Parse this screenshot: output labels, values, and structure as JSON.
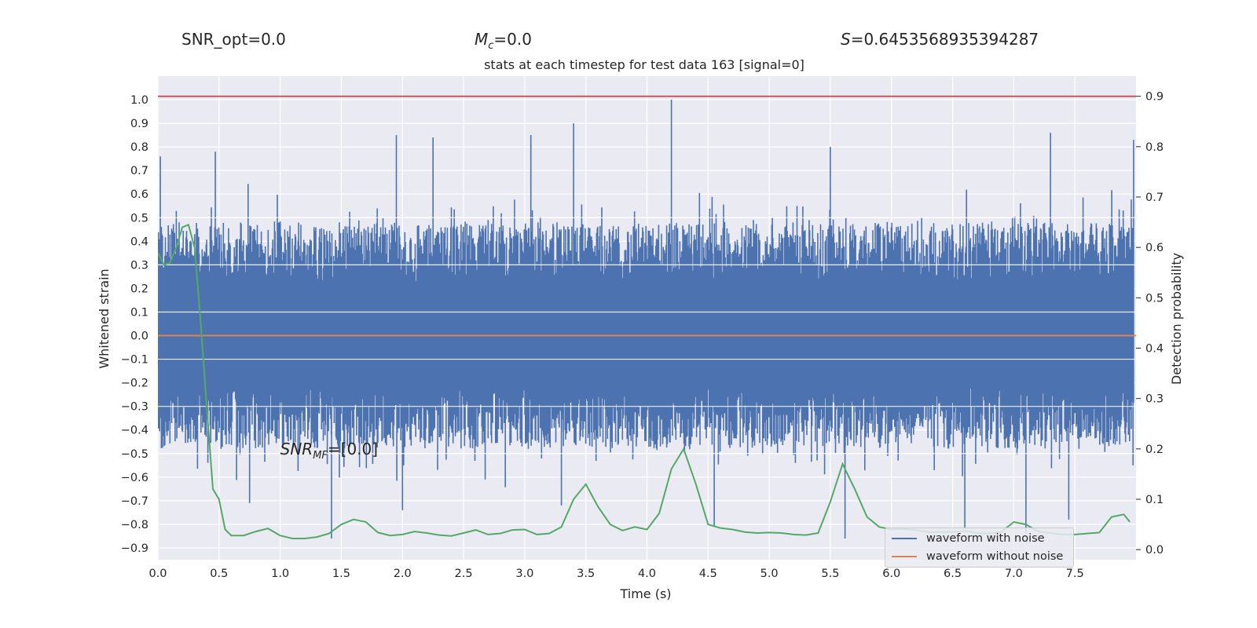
{
  "headers": {
    "snr_opt": "SNR_opt=0.0",
    "mc_symbol": "M",
    "mc_sub": "c",
    "mc_value": "=0.0",
    "s_symbol": "S",
    "s_value": "=0.6453568935394287"
  },
  "chart_data": {
    "type": "line",
    "title": "stats at each timestep for test data 163 [signal=0]",
    "xlabel": "Time (s)",
    "ylabel": "Whitened strain",
    "y2label": "Detection probability",
    "xlim": [
      0.0,
      8.0
    ],
    "ylim": [
      -0.95,
      1.1
    ],
    "y2lim": [
      -0.02,
      0.94
    ],
    "xticks": [
      "0.0",
      "0.5",
      "1.0",
      "1.5",
      "2.0",
      "2.5",
      "3.0",
      "3.5",
      "4.0",
      "4.5",
      "5.0",
      "5.5",
      "6.0",
      "6.5",
      "7.0",
      "7.5"
    ],
    "yticks": [
      "1.0",
      "0.9",
      "0.8",
      "0.7",
      "0.6",
      "0.5",
      "0.4",
      "0.3",
      "0.2",
      "0.1",
      "0.0",
      "-0.1",
      "-0.2",
      "-0.3",
      "-0.4",
      "-0.5",
      "-0.6",
      "-0.7",
      "-0.8",
      "-0.9"
    ],
    "y2ticks": [
      "0.9",
      "0.8",
      "0.7",
      "0.6",
      "0.5",
      "0.4",
      "0.3",
      "0.2",
      "0.1",
      "0.0"
    ],
    "threshold": {
      "value": 0.9,
      "color": "#c44e52"
    },
    "annotation": {
      "base": "SNR",
      "sub": "MF",
      "suffix": "=[0.0]",
      "x": 1.0,
      "y": -0.48
    },
    "series": [
      {
        "name": "waveform with noise",
        "color": "#4c72b0",
        "envelope": "dense noise approx. within [-0.5, 0.5], peak 1.0 at t=4.2",
        "peaks_upper": [
          [
            0.02,
            0.76
          ],
          [
            0.47,
            0.78
          ],
          [
            1.95,
            0.85
          ],
          [
            2.25,
            0.84
          ],
          [
            3.05,
            0.85
          ],
          [
            3.4,
            0.9
          ],
          [
            4.2,
            1.0
          ],
          [
            5.5,
            0.8
          ],
          [
            7.3,
            0.86
          ],
          [
            7.98,
            0.83
          ]
        ],
        "peaks_lower": [
          [
            0.75,
            -0.71
          ],
          [
            1.42,
            -0.86
          ],
          [
            2.0,
            -0.74
          ],
          [
            3.3,
            -0.72
          ],
          [
            4.55,
            -0.81
          ],
          [
            5.62,
            -0.86
          ],
          [
            6.6,
            -0.82
          ],
          [
            7.1,
            -0.84
          ],
          [
            7.45,
            -0.78
          ]
        ]
      },
      {
        "name": "waveform without noise",
        "color": "#dd8452",
        "values": [
          [
            0.0,
            0.0
          ],
          [
            8.0,
            0.0
          ]
        ]
      },
      {
        "name": "",
        "color": "#55a868",
        "axis": "y2",
        "x": [
          0.0,
          0.05,
          0.1,
          0.15,
          0.2,
          0.25,
          0.3,
          0.35,
          0.4,
          0.45,
          0.5,
          0.55,
          0.6,
          0.7,
          0.8,
          0.9,
          1.0,
          1.1,
          1.2,
          1.3,
          1.4,
          1.5,
          1.6,
          1.7,
          1.8,
          1.9,
          2.0,
          2.1,
          2.2,
          2.3,
          2.4,
          2.5,
          2.6,
          2.7,
          2.8,
          2.9,
          3.0,
          3.1,
          3.2,
          3.3,
          3.4,
          3.5,
          3.6,
          3.7,
          3.8,
          3.9,
          4.0,
          4.1,
          4.2,
          4.3,
          4.4,
          4.5,
          4.6,
          4.7,
          4.8,
          4.9,
          5.0,
          5.1,
          5.2,
          5.3,
          5.4,
          5.5,
          5.6,
          5.7,
          5.8,
          5.9,
          6.0,
          6.1,
          6.2,
          6.3,
          6.4,
          6.5,
          6.6,
          6.7,
          6.8,
          6.9,
          7.0,
          7.1,
          7.2,
          7.3,
          7.4,
          7.5,
          7.6,
          7.7,
          7.8,
          7.9,
          7.95
        ],
        "y": [
          0.59,
          0.565,
          0.57,
          0.6,
          0.64,
          0.645,
          0.6,
          0.45,
          0.28,
          0.12,
          0.1,
          0.04,
          0.028,
          0.028,
          0.036,
          0.042,
          0.028,
          0.022,
          0.022,
          0.025,
          0.032,
          0.05,
          0.06,
          0.055,
          0.034,
          0.028,
          0.03,
          0.036,
          0.033,
          0.029,
          0.027,
          0.033,
          0.039,
          0.03,
          0.032,
          0.039,
          0.04,
          0.03,
          0.032,
          0.045,
          0.1,
          0.13,
          0.085,
          0.05,
          0.038,
          0.045,
          0.04,
          0.072,
          0.16,
          0.2,
          0.13,
          0.05,
          0.043,
          0.04,
          0.035,
          0.033,
          0.034,
          0.033,
          0.03,
          0.029,
          0.033,
          0.095,
          0.17,
          0.12,
          0.065,
          0.045,
          0.04,
          0.041,
          0.039,
          0.035,
          0.035,
          0.035,
          0.037,
          0.033,
          0.032,
          0.035,
          0.055,
          0.05,
          0.036,
          0.033,
          0.03,
          0.03,
          0.032,
          0.034,
          0.065,
          0.07,
          0.055
        ]
      }
    ],
    "legend": {
      "loc": "lower right",
      "entries": [
        "waveform with noise",
        "waveform without noise"
      ]
    },
    "grid": true,
    "background": "#eaeaf2"
  }
}
